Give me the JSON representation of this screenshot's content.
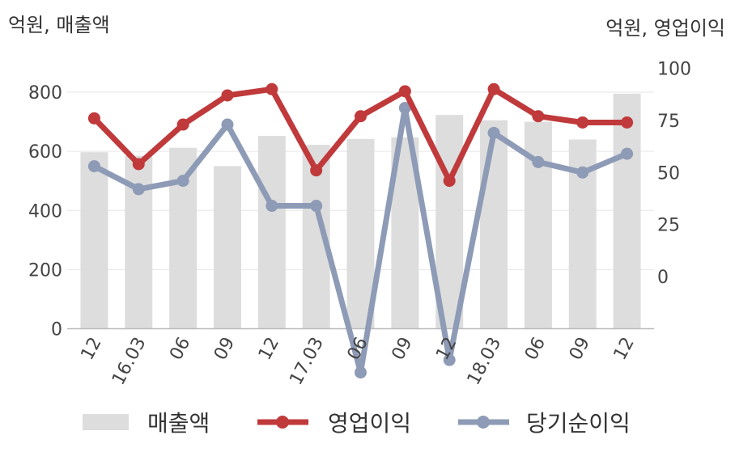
{
  "chart_data": {
    "type": "bar",
    "categories": [
      "12",
      "16.03",
      "06",
      "09",
      "12",
      "17.03",
      "06",
      "09",
      "12",
      "18.03",
      "06",
      "09",
      "12"
    ],
    "y_left_unit": "억원, 매출액",
    "y_right_unit": "억원, 영업이익",
    "y_left_ticks": [
      "0",
      "200",
      "400",
      "600",
      "800"
    ],
    "y_right_ticks": [
      "0",
      "25",
      "50",
      "75",
      "100"
    ],
    "ylim_left": [
      0,
      800
    ],
    "ylim_right": [
      -25,
      100
    ],
    "grid": true,
    "legend_position": "bottom",
    "series": [
      {
        "name": "매출액",
        "type": "bar",
        "axis": "left",
        "color": "#dddddd",
        "values": [
          597,
          585,
          612,
          550,
          652,
          622,
          642,
          647,
          723,
          705,
          700,
          640,
          795
        ]
      },
      {
        "name": "영업이익",
        "type": "line",
        "axis": "right",
        "color": "#c0393b",
        "values": [
          76,
          54,
          73,
          87,
          90,
          51,
          77,
          89,
          46,
          90,
          77,
          74,
          74
        ]
      },
      {
        "name": "당기순이익",
        "type": "line",
        "axis": "right",
        "color": "#8e9bb6",
        "values": [
          53,
          42,
          46,
          73,
          34,
          34,
          -46,
          81,
          -40,
          69,
          55,
          50,
          59
        ]
      }
    ]
  }
}
